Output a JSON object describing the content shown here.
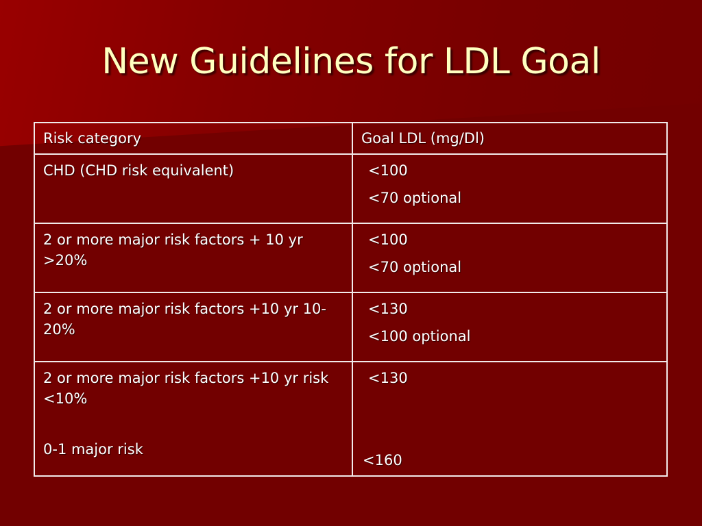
{
  "slide": {
    "title": "New Guidelines for LDL Goal"
  },
  "table": {
    "headers": [
      "Risk category",
      "Goal LDL (mg/Dl)"
    ],
    "rows": [
      {
        "risk": [
          "CHD (CHD risk equivalent)"
        ],
        "goals": [
          "<100",
          "<70 optional"
        ]
      },
      {
        "risk": [
          "2 or more major risk factors + 10 yr >20%"
        ],
        "goals": [
          "<100",
          "<70 optional"
        ]
      },
      {
        "risk": [
          "2 or more major risk factors +10 yr 10-20%"
        ],
        "goals": [
          "<130",
          "<100 optional"
        ]
      },
      {
        "risk": [
          "2 or more major risk factors +10 yr risk <10%",
          "0-1 major risk"
        ],
        "goals": [
          "<130",
          "<160"
        ]
      }
    ]
  },
  "colors": {
    "background": "#720000",
    "title": "#ffffc0",
    "text": "#ffffff",
    "grid": "#f2eaea"
  }
}
